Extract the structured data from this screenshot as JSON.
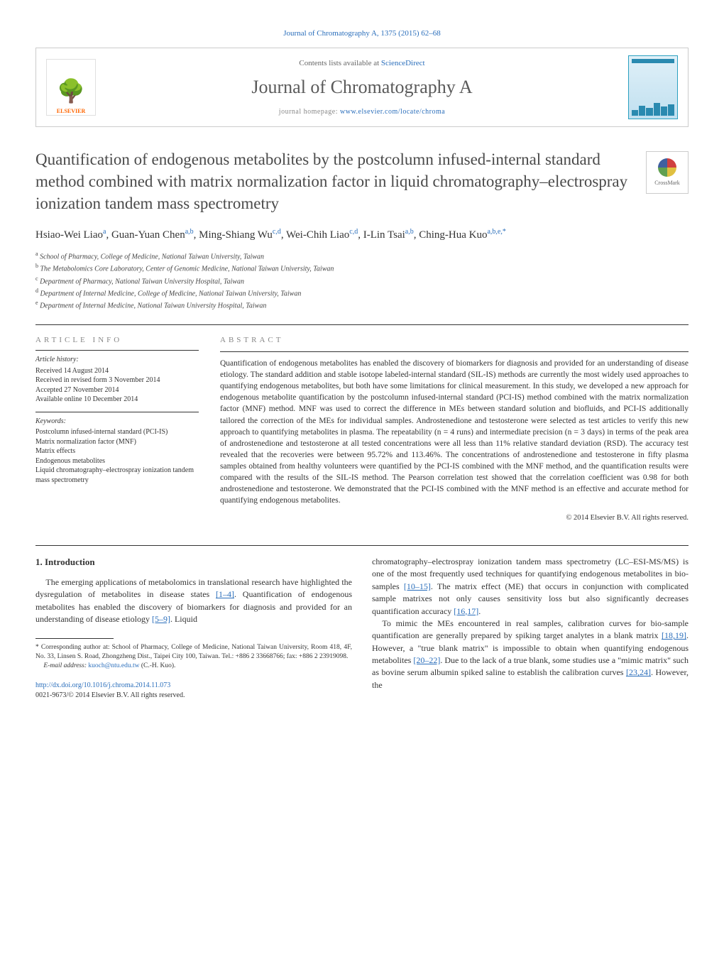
{
  "top_citation": "Journal of Chromatography A, 1375 (2015) 62–68",
  "header": {
    "contents_prefix": "Contents lists available at ",
    "contents_link": "ScienceDirect",
    "journal_name": "Journal of Chromatography A",
    "homepage_prefix": "journal homepage: ",
    "homepage_url": "www.elsevier.com/locate/chroma",
    "publisher_name": "ELSEVIER"
  },
  "crossmark_label": "CrossMark",
  "article": {
    "title": "Quantification of endogenous metabolites by the postcolumn infused-internal standard method combined with matrix normalization factor in liquid chromatography–electrospray ionization tandem mass spectrometry",
    "authors_html": "Hsiao-Wei Liao<span class='sup'>a</span>, Guan-Yuan Chen<span class='sup'>a,b</span>, Ming-Shiang Wu<span class='sup'>c,d</span>, Wei-Chih Liao<span class='sup'>c,d</span>, I-Lin Tsai<span class='sup'>a,b</span>, Ching-Hua Kuo<span class='sup'>a,b,e,*</span>",
    "affiliations": [
      {
        "sup": "a",
        "text": "School of Pharmacy, College of Medicine, National Taiwan University, Taiwan"
      },
      {
        "sup": "b",
        "text": "The Metabolomics Core Laboratory, Center of Genomic Medicine, National Taiwan University, Taiwan"
      },
      {
        "sup": "c",
        "text": "Department of Pharmacy, National Taiwan University Hospital, Taiwan"
      },
      {
        "sup": "d",
        "text": "Department of Internal Medicine, College of Medicine, National Taiwan University, Taiwan"
      },
      {
        "sup": "e",
        "text": "Department of Internal Medicine, National Taiwan University Hospital, Taiwan"
      }
    ]
  },
  "info": {
    "heading": "ARTICLE INFO",
    "history_label": "Article history:",
    "history": "Received 14 August 2014\nReceived in revised form 3 November 2014\nAccepted 27 November 2014\nAvailable online 10 December 2014",
    "keywords_label": "Keywords:",
    "keywords": "Postcolumn infused-internal standard (PCI-IS)\nMatrix normalization factor (MNF)\nMatrix effects\nEndogenous metabolites\nLiquid chromatography–electrospray ionization tandem mass spectrometry"
  },
  "abstract": {
    "heading": "ABSTRACT",
    "text": "Quantification of endogenous metabolites has enabled the discovery of biomarkers for diagnosis and provided for an understanding of disease etiology. The standard addition and stable isotope labeled-internal standard (SIL-IS) methods are currently the most widely used approaches to quantifying endogenous metabolites, but both have some limitations for clinical measurement. In this study, we developed a new approach for endogenous metabolite quantification by the postcolumn infused-internal standard (PCI-IS) method combined with the matrix normalization factor (MNF) method. MNF was used to correct the difference in MEs between standard solution and biofluids, and PCI-IS additionally tailored the correction of the MEs for individual samples. Androstenedione and testosterone were selected as test articles to verify this new approach to quantifying metabolites in plasma. The repeatability (n = 4 runs) and intermediate precision (n = 3 days) in terms of the peak area of androstenedione and testosterone at all tested concentrations were all less than 11% relative standard deviation (RSD). The accuracy test revealed that the recoveries were between 95.72% and 113.46%. The concentrations of androstenedione and testosterone in fifty plasma samples obtained from healthy volunteers were quantified by the PCI-IS combined with the MNF method, and the quantification results were compared with the results of the SIL-IS method. The Pearson correlation test showed that the correlation coefficient was 0.98 for both androstenedione and testosterone. We demonstrated that the PCI-IS combined with the MNF method is an effective and accurate method for quantifying endogenous metabolites.",
    "copyright": "© 2014 Elsevier B.V. All rights reserved."
  },
  "body": {
    "section_heading": "1. Introduction",
    "left_p1_a": "The emerging applications of metabolomics in translational research have highlighted the dysregulation of metabolites in disease states ",
    "left_p1_ref1": "[1–4]",
    "left_p1_b": ". Quantification of endogenous metabolites has enabled the discovery of biomarkers for diagnosis and provided for an understanding of disease etiology ",
    "left_p1_ref2": "[5–9]",
    "left_p1_c": ". Liquid",
    "right_p1_a": "chromatography–electrospray ionization tandem mass spectrometry (LC–ESI-MS/MS) is one of the most frequently used techniques for quantifying endogenous metabolites in bio-samples ",
    "right_p1_ref1": "[10–15]",
    "right_p1_b": ". The matrix effect (ME) that occurs in conjunction with complicated sample matrixes not only causes sensitivity loss but also significantly decreases quantification accuracy ",
    "right_p1_ref2": "[16,17]",
    "right_p1_c": ".",
    "right_p2_a": "To mimic the MEs encountered in real samples, calibration curves for bio-sample quantification are generally prepared by spiking target analytes in a blank matrix ",
    "right_p2_ref1": "[18,19]",
    "right_p2_b": ". However, a \"true blank matrix\" is impossible to obtain when quantifying endogenous metabolites ",
    "right_p2_ref2": "[20–22]",
    "right_p2_c": ". Due to the lack of a true blank, some studies use a \"mimic matrix\" such as bovine serum albumin spiked saline to establish the calibration curves ",
    "right_p2_ref3": "[23,24]",
    "right_p2_d": ". However, the"
  },
  "footnote": {
    "corr_label": "*",
    "corr_text": "Corresponding author at: School of Pharmacy, College of Medicine, National Taiwan University, Room 418, 4F, No. 33, Linsen S. Road, Zhongzheng Dist., Taipei City 100, Taiwan. Tel.: +886 2 33668766; fax: +886 2 23919098.",
    "email_label": "E-mail address: ",
    "email": "kuoch@ntu.edu.tw",
    "email_name": " (C.-H. Kuo)."
  },
  "doi": {
    "url": "http://dx.doi.org/10.1016/j.chroma.2014.11.073",
    "issn_line": "0021-9673/© 2014 Elsevier B.V. All rights reserved."
  },
  "colors": {
    "link": "#2a6ebb",
    "text": "#333333",
    "muted": "#888888",
    "orange": "#ff6600"
  }
}
